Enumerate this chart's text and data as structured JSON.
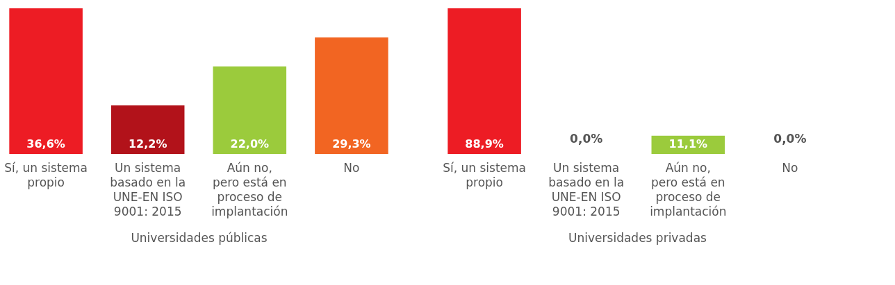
{
  "chart_data": [
    {
      "type": "bar",
      "xlabel": "Universidades públicas",
      "categories": [
        "Sí, un sistema\npropio",
        "Un sistema\nbasado en la\nUNE-EN ISO\n9001: 2015",
        "Aún no,\npero está en\nproceso de\nimplantación",
        "No"
      ],
      "values": [
        36.6,
        12.2,
        22.0,
        29.3
      ],
      "colors": [
        "#ed1c24",
        "#b2121a",
        "#9bcb3c",
        "#f26522"
      ],
      "value_labels": [
        "36,6%",
        "12,2%",
        "22,0%",
        "29,3%"
      ]
    },
    {
      "type": "bar",
      "xlabel": "Universidades privadas",
      "categories": [
        "Sí, un sistema\npropio",
        "Un sistema\nbasado en la\nUNE-EN ISO\n9001: 2015",
        "Aún no,\npero está en\nproceso de\nimplantación",
        "No"
      ],
      "values": [
        88.9,
        0.0,
        11.1,
        0.0
      ],
      "colors": [
        "#ed1c24",
        "#b2121a",
        "#9bcb3c",
        "#f26522"
      ],
      "value_labels": [
        "88,9%",
        "0,0%",
        "11,1%",
        "0,0%"
      ]
    }
  ]
}
